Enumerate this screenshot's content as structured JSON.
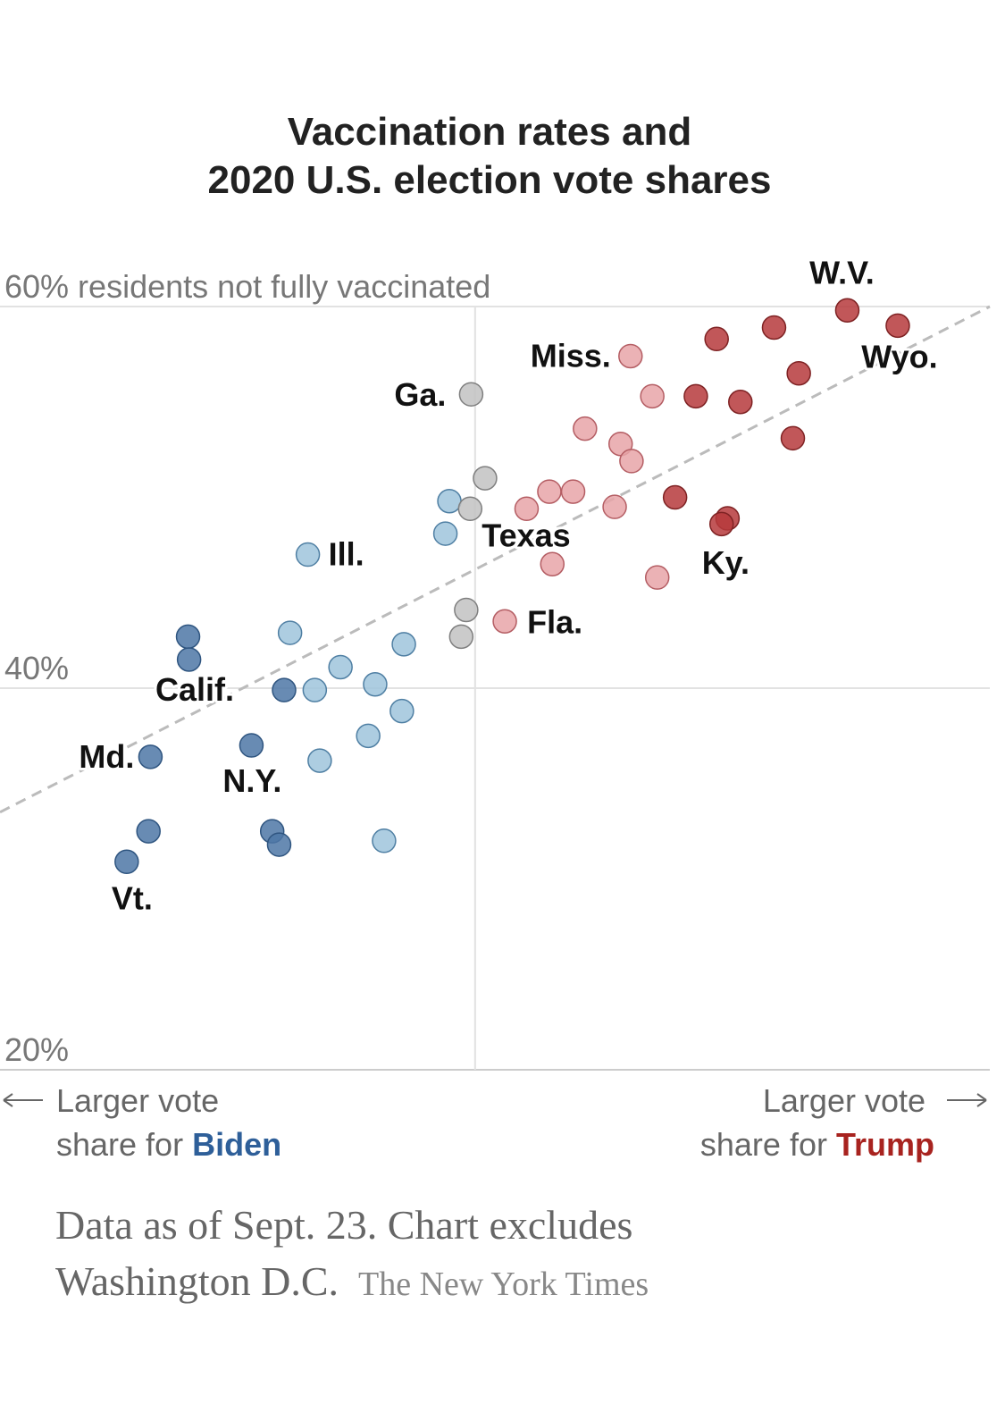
{
  "chart_data": {
    "type": "scatter",
    "title": [
      "Vaccination rates and",
      "2020 U.S. election vote shares"
    ],
    "xlim": [
      -48,
      52
    ],
    "xticks": [
      0
    ],
    "ylim": [
      20,
      60
    ],
    "yticks": [
      {
        "value": 20,
        "label": "20%"
      },
      {
        "value": 40,
        "label": "40%"
      },
      {
        "value": 60,
        "label": "60% residents not fully vaccinated"
      }
    ],
    "grid": true,
    "series": [
      {
        "color": "#9fc4dc",
        "stroke": "#4f7fa3",
        "x": [
          -2.6,
          -3.0,
          -16.9,
          -18.7,
          -7.2,
          -13.6,
          -16.2,
          -10.1,
          -7.4,
          -10.8,
          -15.7,
          -9.2
        ],
        "y": [
          49.8,
          48.1,
          47.0,
          42.9,
          42.3,
          41.1,
          39.9,
          40.2,
          38.8,
          37.5,
          36.2,
          32.0
        ],
        "labels": [
          null,
          null,
          "Ill.",
          null,
          null,
          null,
          null,
          null,
          null,
          null,
          null,
          null
        ]
      },
      {
        "color": "#4d77a6",
        "stroke": "#2f5580",
        "x": [
          -29.0,
          -28.9,
          -19.3,
          -22.6,
          -32.8,
          -33.0,
          -20.5,
          -19.8,
          -35.2
        ],
        "y": [
          42.7,
          41.5,
          39.9,
          37.0,
          36.4,
          32.5,
          32.5,
          31.8,
          30.9
        ],
        "labels": [
          null,
          null,
          "Calif.",
          "N.Y.",
          "Md.",
          null,
          null,
          null,
          "Vt."
        ]
      },
      {
        "color": "#c2c2c2",
        "stroke": "#7f7f7f",
        "x": [
          -0.4,
          1.0,
          -0.5,
          -0.9,
          -1.4
        ],
        "y": [
          55.4,
          51.0,
          49.4,
          44.1,
          42.7
        ],
        "labels": [
          "Ga.",
          null,
          "Texas",
          null,
          null
        ]
      },
      {
        "color": "#e8a4a8",
        "stroke": "#b45d63",
        "x": [
          15.7,
          17.9,
          11.1,
          14.7,
          15.8,
          7.5,
          9.9,
          5.2,
          14.1,
          7.8,
          18.4,
          3.0
        ],
        "y": [
          57.4,
          55.3,
          53.6,
          52.8,
          51.9,
          50.3,
          50.3,
          49.4,
          49.5,
          46.5,
          45.8,
          43.5
        ],
        "labels": [
          "Miss.",
          null,
          null,
          null,
          null,
          null,
          null,
          null,
          null,
          null,
          null,
          "Fla."
        ]
      },
      {
        "color": "#b63a3c",
        "stroke": "#7e2223",
        "x": [
          37.6,
          42.7,
          30.2,
          24.4,
          32.7,
          22.3,
          26.8,
          32.1,
          20.2,
          25.5,
          24.9
        ],
        "y": [
          59.8,
          59.0,
          58.9,
          58.3,
          56.5,
          55.3,
          55.0,
          53.1,
          50.0,
          48.9,
          48.6
        ],
        "labels": [
          "W.V.",
          "Wyo.",
          null,
          null,
          null,
          null,
          null,
          null,
          null,
          "Ky.",
          null
        ]
      }
    ],
    "trend_line": {
      "x": [
        -48,
        52
      ],
      "y": [
        33.5,
        60
      ]
    },
    "x_left": {
      "lines": [
        "Larger vote",
        "share for"
      ],
      "party": "Biden",
      "color": "#2e5f99"
    },
    "x_right": {
      "lines": [
        "Larger vote",
        "share for"
      ],
      "party": "Trump",
      "color": "#a8231f"
    },
    "note": [
      "Data as of Sept. 23. Chart excludes",
      "Washington D.C."
    ],
    "source": "The New York Times"
  }
}
